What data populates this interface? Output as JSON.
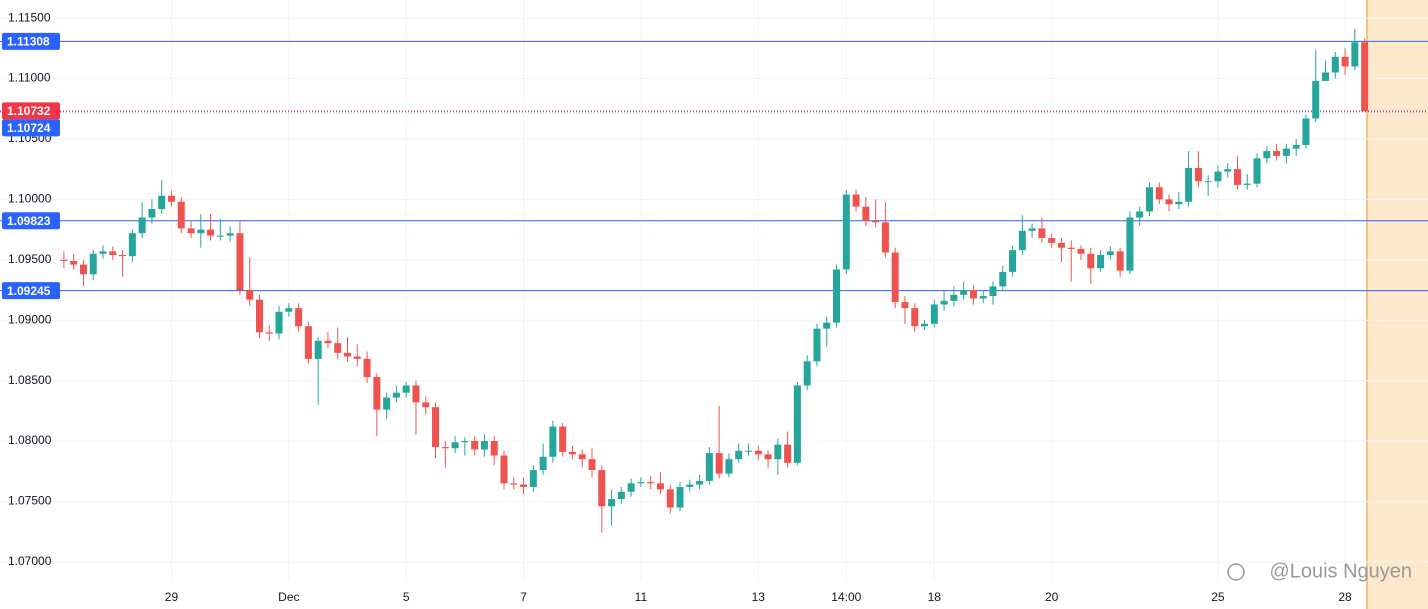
{
  "chart_data": {
    "type": "candlestick",
    "categories": [
      null,
      null,
      null,
      null,
      null,
      null,
      null,
      null,
      null,
      null,
      null,
      "29",
      null,
      null,
      null,
      null,
      null,
      null,
      null,
      null,
      null,
      null,
      null,
      "Dec",
      null,
      null,
      null,
      null,
      null,
      null,
      null,
      null,
      null,
      null,
      null,
      "5",
      null,
      null,
      null,
      null,
      null,
      null,
      null,
      null,
      null,
      null,
      null,
      "7",
      null,
      null,
      null,
      null,
      null,
      null,
      null,
      null,
      null,
      null,
      null,
      "11",
      null,
      null,
      null,
      null,
      null,
      null,
      null,
      null,
      null,
      null,
      null,
      "13",
      null,
      null,
      null,
      null,
      null,
      null,
      null,
      null,
      "14:00",
      null,
      null,
      null,
      null,
      null,
      null,
      null,
      null,
      "18",
      null,
      null,
      null,
      null,
      null,
      null,
      null,
      null,
      null,
      null,
      null,
      "20",
      null,
      null,
      null,
      null,
      null,
      null,
      null,
      null,
      null,
      null,
      null,
      null,
      null,
      null,
      null,
      null,
      "25",
      null,
      null,
      null,
      null,
      null,
      null,
      null,
      null,
      null,
      null,
      null,
      null,
      "28",
      null,
      null
    ],
    "open": [
      1.095,
      1.0949,
      1.0946,
      1.0938,
      1.0955,
      1.0957,
      1.0954,
      1.0953,
      1.0972,
      1.0985,
      1.0992,
      1.1003,
      1.0998,
      1.0976,
      1.0972,
      1.0975,
      1.097,
      1.097,
      1.0972,
      1.0925,
      1.0917,
      1.089,
      1.0889,
      1.0907,
      1.091,
      1.0895,
      1.0868,
      1.0883,
      1.0881,
      1.0873,
      1.087,
      1.0868,
      1.0853,
      1.0826,
      1.0836,
      1.084,
      1.0846,
      1.0832,
      1.0828,
      1.0795,
      1.0794,
      1.0799,
      1.08,
      1.0793,
      1.08,
      1.0788,
      1.0765,
      1.0764,
      1.0762,
      1.0776,
      1.0787,
      1.0812,
      1.0791,
      1.0789,
      1.0785,
      1.0776,
      1.0746,
      1.0752,
      1.0758,
      1.0765,
      1.0766,
      1.0765,
      1.076,
      1.0745,
      1.0762,
      1.0764,
      1.0767,
      1.079,
      1.0773,
      1.0785,
      1.0792,
      1.0792,
      1.0789,
      1.0785,
      1.0797,
      1.0782,
      1.0846,
      1.0866,
      1.0893,
      1.0898,
      1.0942,
      1.1004,
      1.0994,
      1.0982,
      1.0981,
      1.0956,
      1.0915,
      1.091,
      1.0895,
      1.0897,
      1.0913,
      1.0916,
      1.0921,
      1.0925,
      1.0918,
      1.092,
      1.0928,
      1.094,
      1.0958,
      1.0974,
      1.0976,
      1.0968,
      1.0964,
      1.096,
      1.0959,
      1.0955,
      1.0943,
      1.0954,
      1.0957,
      1.0941,
      1.0985,
      1.099,
      1.101,
      1.1,
      1.0996,
      1.0998,
      1.1026,
      1.1015,
      1.1015,
      1.1023,
      1.1025,
      1.1012,
      1.1013,
      1.1034,
      1.104,
      1.1036,
      1.1042,
      1.1045,
      1.1067,
      1.1098,
      1.1105,
      1.1118,
      1.111,
      1.113
    ],
    "high": [
      1.0957,
      1.0955,
      1.095,
      1.0958,
      1.0962,
      1.0961,
      1.0958,
      1.0975,
      1.0998,
      1.1,
      1.1016,
      1.1007,
      1.1002,
      1.0982,
      1.0988,
      1.0988,
      1.0984,
      1.0978,
      1.0982,
      1.0952,
      1.0921,
      1.0896,
      1.0912,
      1.0914,
      1.0914,
      1.0899,
      1.0886,
      1.089,
      1.0894,
      1.0886,
      1.088,
      1.0874,
      1.0856,
      1.084,
      1.0846,
      1.0849,
      1.085,
      1.0837,
      1.0832,
      1.08,
      1.0804,
      1.0803,
      1.0804,
      1.0806,
      1.0804,
      1.0792,
      1.077,
      1.077,
      1.078,
      1.0798,
      1.0817,
      1.0815,
      1.0796,
      1.0793,
      1.0794,
      1.078,
      1.076,
      1.0762,
      1.0769,
      1.077,
      1.0771,
      1.0774,
      1.0764,
      1.0766,
      1.0768,
      1.0772,
      1.0795,
      1.0829,
      1.079,
      1.0798,
      1.0798,
      1.0796,
      1.0792,
      1.0802,
      1.0808,
      1.0849,
      1.0871,
      1.0897,
      1.0903,
      1.0946,
      1.1008,
      1.1008,
      1.1002,
      1.1,
      1.0998,
      1.096,
      1.092,
      1.0914,
      1.09,
      1.0917,
      1.0925,
      1.0928,
      1.0932,
      1.0929,
      1.0924,
      1.0932,
      1.0945,
      1.0962,
      1.0987,
      1.098,
      1.0985,
      1.0972,
      1.0968,
      1.0966,
      1.0962,
      1.096,
      1.0958,
      1.0961,
      1.096,
      1.099,
      1.0994,
      1.1014,
      1.1014,
      1.1004,
      1.1006,
      1.104,
      1.104,
      1.102,
      1.1028,
      1.103,
      1.1036,
      1.1021,
      1.1038,
      1.1044,
      1.1046,
      1.1046,
      1.105,
      1.107,
      1.1124,
      1.1115,
      1.1122,
      1.1125,
      1.1141,
      1.1133
    ],
    "low": [
      1.0943,
      1.0942,
      1.0928,
      1.0933,
      1.0951,
      1.095,
      1.0936,
      1.0948,
      1.0968,
      1.098,
      1.0988,
      1.0994,
      1.0972,
      1.0968,
      1.096,
      1.0966,
      1.0966,
      1.0965,
      1.0921,
      1.0912,
      1.0885,
      1.0883,
      1.0884,
      1.0903,
      1.089,
      1.0864,
      1.083,
      1.0877,
      1.0868,
      1.0866,
      1.0862,
      1.0848,
      1.0804,
      1.0818,
      1.0832,
      1.0836,
      1.0805,
      1.0822,
      1.0786,
      1.0778,
      1.079,
      1.0788,
      1.0788,
      1.0787,
      1.078,
      1.076,
      1.076,
      1.0756,
      1.0758,
      1.0772,
      1.0782,
      1.0787,
      1.0785,
      1.0778,
      1.077,
      1.0724,
      1.073,
      1.0748,
      1.0754,
      1.0762,
      1.076,
      1.0756,
      1.074,
      1.0742,
      1.0758,
      1.076,
      1.0764,
      1.0769,
      1.077,
      1.0782,
      1.0788,
      1.0784,
      1.0778,
      1.0772,
      1.0778,
      1.078,
      1.0842,
      1.0862,
      1.0878,
      1.0894,
      1.0938,
      1.099,
      1.0978,
      1.0977,
      1.0952,
      1.091,
      1.0897,
      1.089,
      1.0892,
      1.0894,
      1.0908,
      1.0911,
      1.0917,
      1.0913,
      1.0914,
      1.0913,
      1.0924,
      1.0936,
      1.0954,
      1.0968,
      1.0964,
      1.096,
      1.0948,
      1.0932,
      1.095,
      1.093,
      1.094,
      1.095,
      1.0936,
      1.0938,
      1.0978,
      1.0986,
      1.0996,
      1.099,
      1.0992,
      1.0994,
      1.101,
      1.1003,
      1.101,
      1.1018,
      1.1008,
      1.1008,
      1.101,
      1.103,
      1.1032,
      1.103,
      1.1036,
      1.1042,
      1.1064,
      1.1098,
      1.11,
      1.1103,
      1.1107,
      1.1073
    ],
    "close": [
      1.0949,
      1.0946,
      1.0938,
      1.0955,
      1.0957,
      1.0954,
      1.0953,
      1.0972,
      1.0985,
      1.0992,
      1.1003,
      1.0998,
      1.0976,
      1.0972,
      1.0975,
      1.097,
      1.097,
      1.0972,
      1.0925,
      1.0917,
      1.089,
      1.0889,
      1.0907,
      1.091,
      1.0895,
      1.0868,
      1.0883,
      1.0881,
      1.0873,
      1.087,
      1.0868,
      1.0853,
      1.0826,
      1.0836,
      1.084,
      1.0846,
      1.0832,
      1.0828,
      1.0795,
      1.0794,
      1.0799,
      1.08,
      1.0793,
      1.08,
      1.0788,
      1.0765,
      1.0764,
      1.0762,
      1.0776,
      1.0787,
      1.0812,
      1.0791,
      1.0789,
      1.0785,
      1.0776,
      1.0746,
      1.0752,
      1.0758,
      1.0765,
      1.0766,
      1.0765,
      1.076,
      1.0745,
      1.0762,
      1.0764,
      1.0767,
      1.079,
      1.0773,
      1.0785,
      1.0792,
      1.0792,
      1.0789,
      1.0785,
      1.0797,
      1.0782,
      1.0846,
      1.0866,
      1.0893,
      1.0898,
      1.0942,
      1.1004,
      1.0994,
      1.0982,
      1.0981,
      1.0956,
      1.0915,
      1.091,
      1.0895,
      1.0897,
      1.0913,
      1.0916,
      1.0921,
      1.0925,
      1.0918,
      1.092,
      1.0928,
      1.094,
      1.0958,
      1.0974,
      1.0976,
      1.0968,
      1.0964,
      1.096,
      1.0959,
      1.0955,
      1.0943,
      1.0954,
      1.0957,
      1.0941,
      1.0985,
      1.099,
      1.101,
      1.1,
      1.0996,
      1.0998,
      1.1026,
      1.1015,
      1.1015,
      1.1023,
      1.1025,
      1.1012,
      1.1013,
      1.1034,
      1.104,
      1.1036,
      1.1042,
      1.1045,
      1.1067,
      1.1098,
      1.1105,
      1.1118,
      1.111,
      1.113,
      1.1073
    ],
    "up_color": "#26a69a",
    "down_color": "#ef5350",
    "ylim": [
      1.0685,
      1.1165
    ],
    "yticks": [
      {
        "value": 1.07,
        "label": "1.07000"
      },
      {
        "value": 1.075,
        "label": "1.07500"
      },
      {
        "value": 1.08,
        "label": "1.08000"
      },
      {
        "value": 1.085,
        "label": "1.08500"
      },
      {
        "value": 1.09,
        "label": "1.09000"
      },
      {
        "value": 1.095,
        "label": "1.09500"
      },
      {
        "value": 1.1,
        "label": "1.10000"
      },
      {
        "value": 1.105,
        "label": "1.10500"
      },
      {
        "value": 1.11,
        "label": "1.11000"
      },
      {
        "value": 1.115,
        "label": "1.11500"
      }
    ],
    "grid": true,
    "levels": [
      {
        "value": 1.11308,
        "color": "#2962ff"
      },
      {
        "value": 1.10732,
        "color": "#f23645",
        "dashed": true
      },
      {
        "value": 1.10724,
        "color": "#2962ff",
        "dashed": true
      },
      {
        "value": 1.09823,
        "color": "#2962ff"
      },
      {
        "value": 1.09245,
        "color": "#2962ff"
      }
    ]
  },
  "watermark": "@Louis Nguyen"
}
